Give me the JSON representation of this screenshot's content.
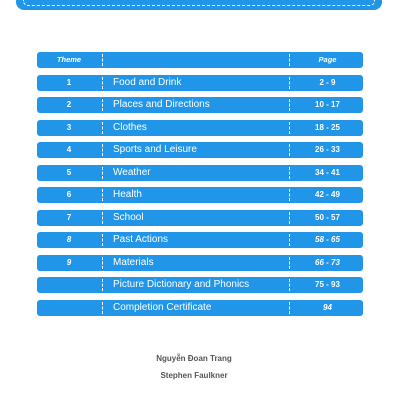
{
  "header": {
    "theme": "Theme",
    "page": "Page"
  },
  "rows": [
    {
      "num": "1",
      "title": "Food and Drink",
      "pages": "2 - 9"
    },
    {
      "num": "2",
      "title": "Places and Directions",
      "pages": "10 - 17"
    },
    {
      "num": "3",
      "title": "Clothes",
      "pages": "18 - 25"
    },
    {
      "num": "4",
      "title": "Sports and Leisure",
      "pages": "26 - 33"
    },
    {
      "num": "5",
      "title": "Weather",
      "pages": "34 - 41"
    },
    {
      "num": "6",
      "title": "Health",
      "pages": "42 - 49"
    },
    {
      "num": "7",
      "title": "School",
      "pages": "50 - 57"
    },
    {
      "num": "8",
      "title": "Past Actions",
      "pages": "58 - 65"
    },
    {
      "num": "9",
      "title": "Materials",
      "pages": "66 - 73"
    },
    {
      "num": "",
      "title": "Picture Dictionary and Phonics",
      "pages": "75 - 93"
    },
    {
      "num": "",
      "title": "Completion Certificate",
      "pages": "94"
    }
  ],
  "authors": [
    "Nguyễn Đoan Trang",
    "Stephen Faulkner"
  ],
  "colors": {
    "accent": "#2196e8",
    "text": "#ffffff",
    "author_text": "#555555"
  }
}
